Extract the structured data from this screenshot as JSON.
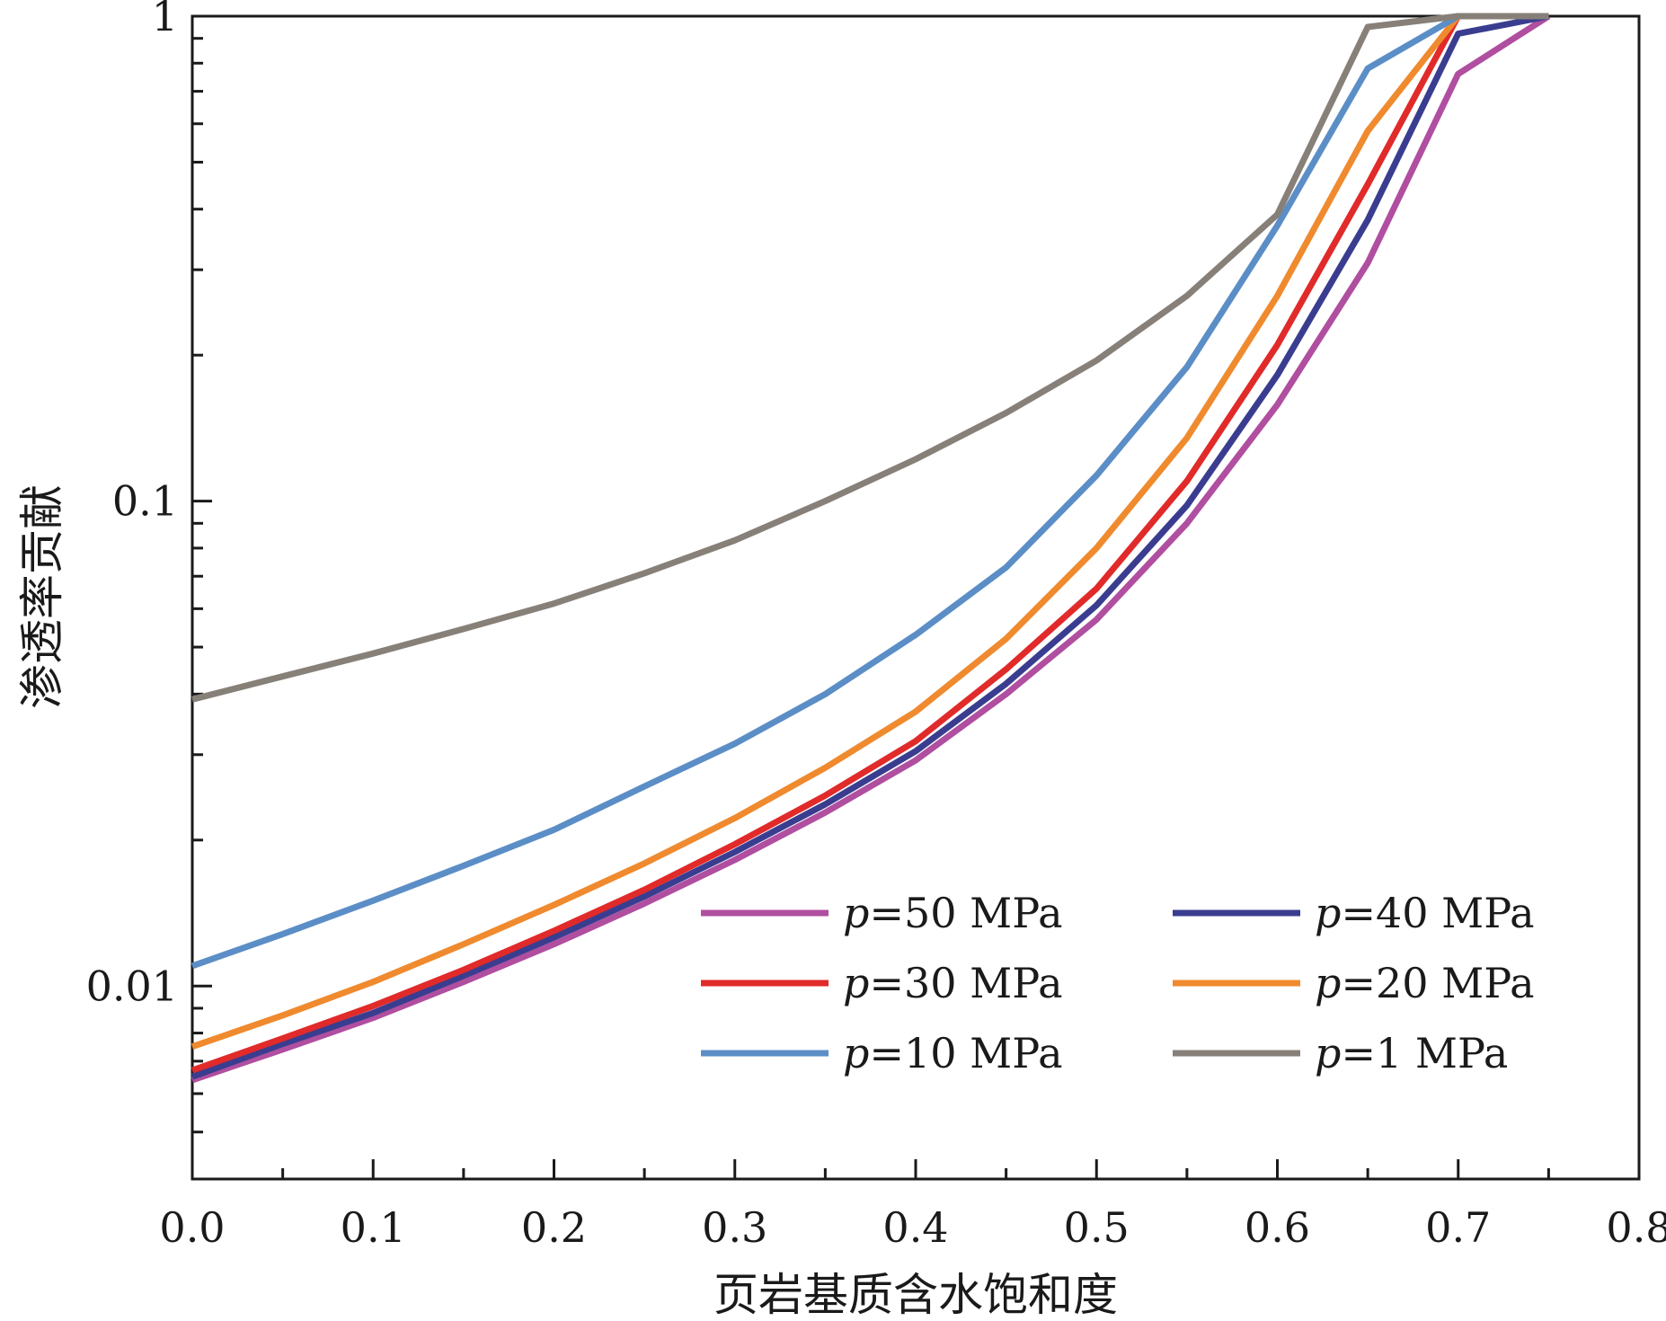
{
  "chart_data": {
    "type": "line",
    "xlabel": "页岩基质含水饱和度",
    "ylabel": "渗透率贡献",
    "xlim": [
      0,
      0.8
    ],
    "ylim": [
      0.004,
      1
    ],
    "yscale": "log",
    "xticks": [
      "0.0",
      "0.1",
      "0.2",
      "0.3",
      "0.4",
      "0.5",
      "0.6",
      "0.7",
      "0.8"
    ],
    "yticks": [
      "0.01",
      "0.1",
      "1"
    ],
    "legend_position": "lower-right",
    "legend_prefix": "p",
    "x": [
      0,
      0.05,
      0.1,
      0.15,
      0.2,
      0.25,
      0.3,
      0.35,
      0.4,
      0.45,
      0.5,
      0.55,
      0.6,
      0.65,
      0.7,
      0.75
    ],
    "series": [
      {
        "name": "=50 MPa",
        "color": "#b04ea0",
        "values": [
          0.0064,
          0.0074,
          0.0086,
          0.0102,
          0.0122,
          0.0148,
          0.0182,
          0.0228,
          0.0292,
          0.04,
          0.057,
          0.09,
          0.158,
          0.31,
          0.76,
          1.0
        ]
      },
      {
        "name": "=40 MPa",
        "color": "#3a3d8f",
        "values": [
          0.0065,
          0.0076,
          0.0088,
          0.0105,
          0.0126,
          0.0153,
          0.0189,
          0.0237,
          0.0305,
          0.042,
          0.061,
          0.098,
          0.182,
          0.38,
          0.92,
          1.0
        ]
      },
      {
        "name": "=30 MPa",
        "color": "#e12a2a",
        "values": [
          0.0067,
          0.0078,
          0.0091,
          0.0108,
          0.013,
          0.0158,
          0.0196,
          0.0247,
          0.032,
          0.045,
          0.066,
          0.11,
          0.21,
          0.45,
          1.0,
          1.0
        ]
      },
      {
        "name": "=20 MPa",
        "color": "#f08a2e",
        "values": [
          0.0075,
          0.0087,
          0.0102,
          0.0122,
          0.0147,
          0.0179,
          0.0222,
          0.0282,
          0.0368,
          0.052,
          0.08,
          0.135,
          0.265,
          0.58,
          1.0,
          1.0
        ]
      },
      {
        "name": "=10 MPa",
        "color": "#5b8ec6",
        "values": [
          0.011,
          0.0128,
          0.015,
          0.0177,
          0.021,
          0.0258,
          0.0316,
          0.04,
          0.053,
          0.073,
          0.113,
          0.189,
          0.37,
          0.78,
          1.0,
          1.0
        ]
      },
      {
        "name": "=1 MPa",
        "color": "#878079",
        "values": [
          0.039,
          0.0435,
          0.0485,
          0.0545,
          0.0615,
          0.071,
          0.083,
          0.1,
          0.122,
          0.152,
          0.195,
          0.265,
          0.39,
          0.95,
          1.0,
          1.0
        ]
      }
    ]
  }
}
